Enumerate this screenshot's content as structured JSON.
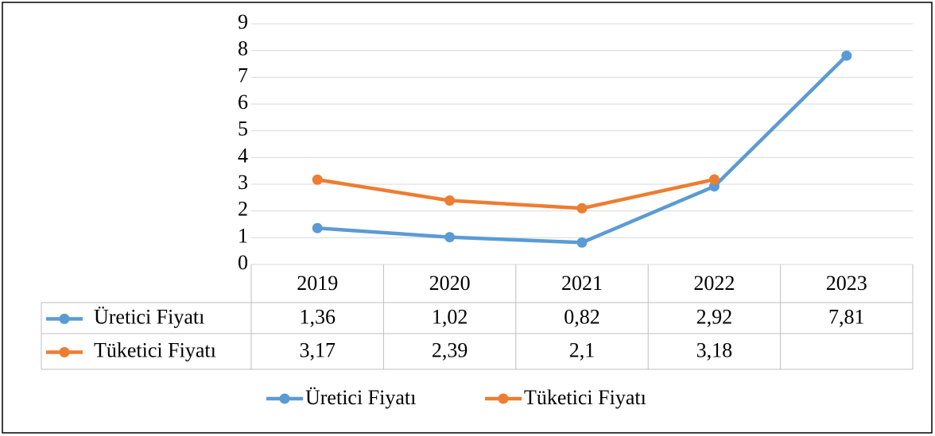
{
  "chart_data": {
    "type": "line",
    "categories": [
      "2019",
      "2020",
      "2021",
      "2022",
      "2023"
    ],
    "series": [
      {
        "name": "Üretici Fiyatı",
        "color": "#5b9bd5",
        "values": [
          1.36,
          1.02,
          0.82,
          2.92,
          7.81
        ],
        "value_labels": [
          "1,36",
          "1,02",
          "0,82",
          "2,92",
          "7,81"
        ]
      },
      {
        "name": "Tüketici Fiyatı",
        "color": "#ed7d31",
        "values": [
          3.17,
          2.39,
          2.1,
          3.18,
          null
        ],
        "value_labels": [
          "3,17",
          "2,39",
          "2,1",
          "3,18",
          null
        ]
      }
    ],
    "ylim": [
      0,
      9
    ],
    "yticks": [
      0,
      1,
      2,
      3,
      4,
      5,
      6,
      7,
      8,
      9
    ],
    "grid": true,
    "legend": "bottom"
  }
}
